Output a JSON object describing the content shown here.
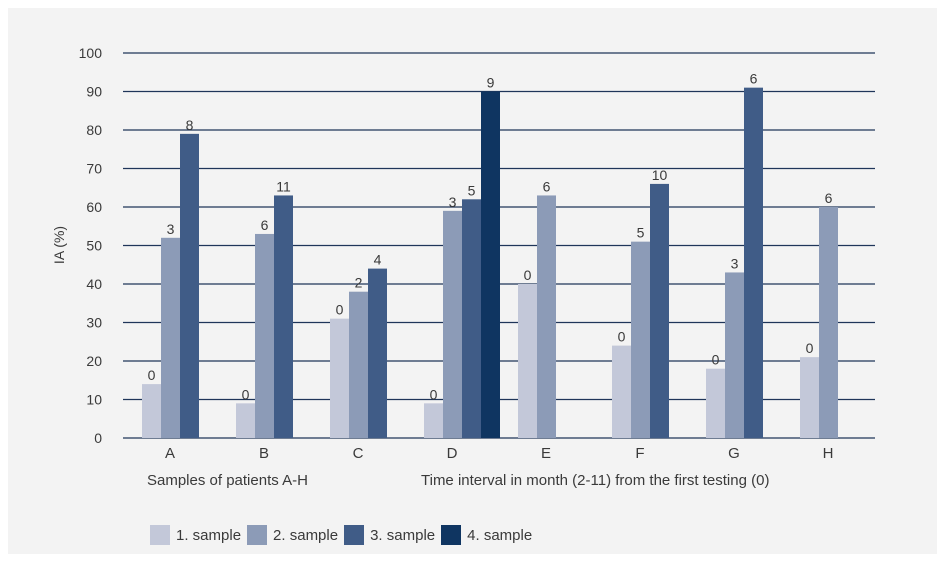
{
  "chart_data": {
    "type": "bar",
    "ylabel": "IA (%)",
    "ylim": [
      0,
      100
    ],
    "yticks": [
      0,
      10,
      20,
      30,
      40,
      50,
      60,
      70,
      80,
      90,
      100
    ],
    "grid": true,
    "categories": [
      "A",
      "B",
      "C",
      "D",
      "E",
      "F",
      "G",
      "H"
    ],
    "series": [
      {
        "name": "1. sample",
        "color": "#c3c8d9",
        "values": [
          14,
          9,
          31,
          9,
          40,
          24,
          18,
          21
        ],
        "labels": [
          "0",
          "0",
          "0",
          "0",
          "0",
          "0",
          "0",
          "0"
        ]
      },
      {
        "name": "2. sample",
        "color": "#8c9bb7",
        "values": [
          52,
          53,
          38,
          59,
          63,
          51,
          43,
          60
        ],
        "labels": [
          "3",
          "6",
          "2",
          "3",
          "6",
          "5",
          "3",
          "6"
        ]
      },
      {
        "name": "3. sample",
        "color": "#405c87",
        "values": [
          79,
          63,
          44,
          62,
          null,
          66,
          91,
          null
        ],
        "labels": [
          "8",
          "11",
          "4",
          "5",
          null,
          "10",
          "6",
          null
        ]
      },
      {
        "name": "4. sample",
        "color": "#0f3561",
        "values": [
          null,
          null,
          null,
          90,
          null,
          null,
          null,
          null
        ],
        "labels": [
          null,
          null,
          null,
          "9",
          null,
          null,
          null,
          null
        ]
      }
    ],
    "annotations": {
      "samples_note": "Samples of patients A-H",
      "interval_note": "Time interval in month (2-11) from the first testing (0)"
    },
    "legend_position": "bottom-left"
  }
}
